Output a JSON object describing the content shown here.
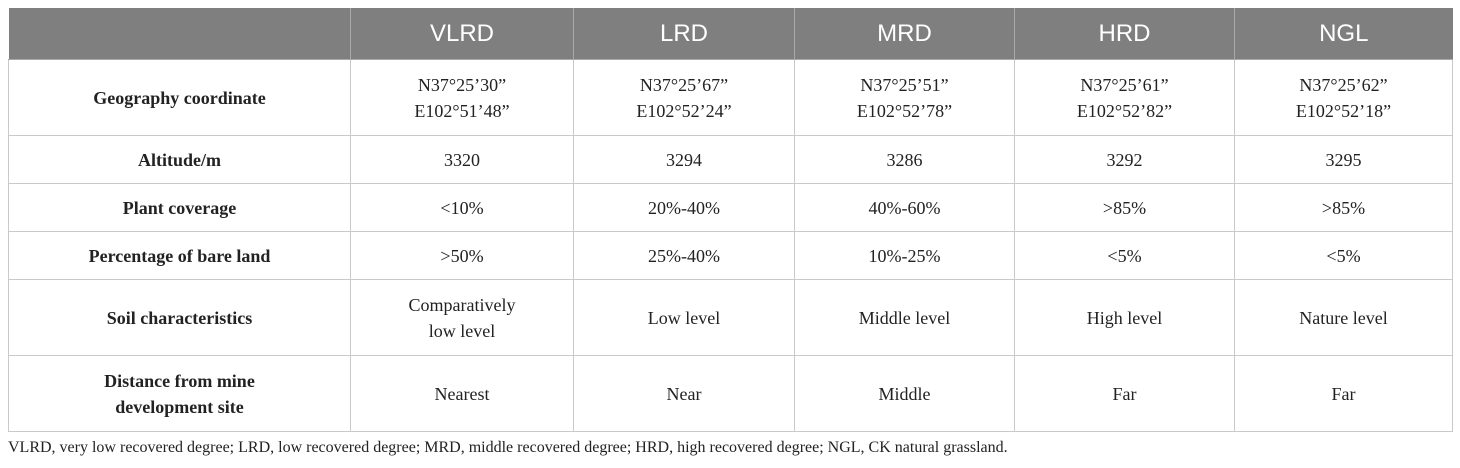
{
  "table": {
    "columns": [
      "",
      "VLRD",
      "LRD",
      "MRD",
      "HRD",
      "NGL"
    ],
    "rows": [
      {
        "label": "Geography coordinate",
        "cells": [
          [
            "N37°25’30”",
            "E102°51’48”"
          ],
          [
            "N37°25’67”",
            "E102°52’24”"
          ],
          [
            "N37°25’51”",
            "E102°52’78”"
          ],
          [
            "N37°25’61”",
            "E102°52’82”"
          ],
          [
            "N37°25’62”",
            "E102°52’18”"
          ]
        ]
      },
      {
        "label": "Altitude/m",
        "cells": [
          [
            "3320"
          ],
          [
            "3294"
          ],
          [
            "3286"
          ],
          [
            "3292"
          ],
          [
            "3295"
          ]
        ]
      },
      {
        "label": "Plant coverage",
        "cells": [
          [
            "<10%"
          ],
          [
            "20%-40%"
          ],
          [
            "40%-60%"
          ],
          [
            ">85%"
          ],
          [
            ">85%"
          ]
        ]
      },
      {
        "label": "Percentage of bare land",
        "cells": [
          [
            ">50%"
          ],
          [
            "25%-40%"
          ],
          [
            "10%-25%"
          ],
          [
            "<5%"
          ],
          [
            "<5%"
          ]
        ]
      },
      {
        "label": "Soil characteristics",
        "cells": [
          [
            "Comparatively",
            "low level"
          ],
          [
            "Low level"
          ],
          [
            "Middle level"
          ],
          [
            "High level"
          ],
          [
            "Nature level"
          ]
        ]
      },
      {
        "label": [
          "Distance from mine",
          "development site"
        ],
        "cells": [
          [
            "Nearest"
          ],
          [
            "Near"
          ],
          [
            "Middle"
          ],
          [
            "Far"
          ],
          [
            "Far"
          ]
        ]
      }
    ]
  },
  "footnote": "VLRD, very low recovered degree; LRD, low recovered degree; MRD, middle recovered degree; HRD, high recovered degree; NGL, CK natural grassland."
}
